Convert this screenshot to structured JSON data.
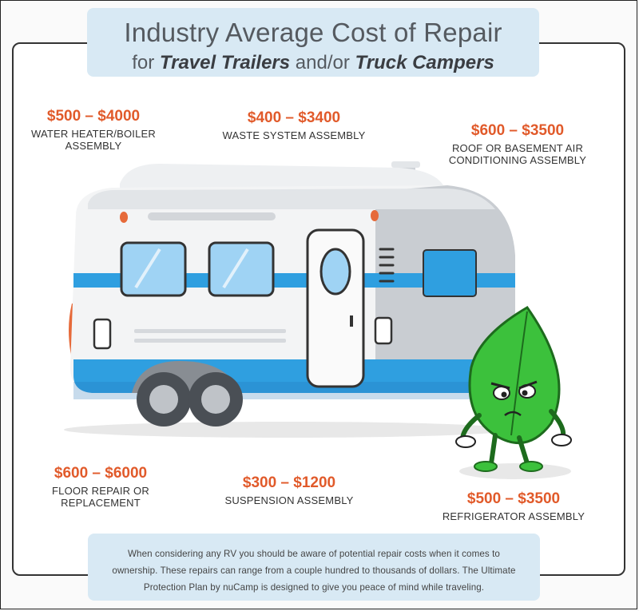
{
  "title": {
    "line1": "Industry Average Cost of Repair",
    "line2_prefix": "for ",
    "line2_bold1": "Travel Trailers",
    "line2_mid": " and/or ",
    "line2_bold2": "Truck Campers"
  },
  "costs": [
    {
      "price": "$500 – $4000",
      "desc1": "WATER HEATER/BOILER",
      "desc2": "ASSEMBLY"
    },
    {
      "price": "$400 – $3400",
      "desc1": "WASTE SYSTEM ASSEMBLY",
      "desc2": ""
    },
    {
      "price": "$600 – $3500",
      "desc1": "ROOF OR BASEMENT AIR",
      "desc2": "CONDITIONING ASSEMBLY"
    },
    {
      "price": "$600 – $6000",
      "desc1": "FLOOR REPAIR OR",
      "desc2": "REPLACEMENT"
    },
    {
      "price": "$300 – $1200",
      "desc1": "SUSPENSION ASSEMBLY",
      "desc2": ""
    },
    {
      "price": "$500 – $3500",
      "desc1": "REFRIGERATOR ASSEMBLY",
      "desc2": ""
    }
  ],
  "info_text": "When considering any RV you should be aware of potential repair costs when it comes to ownership. These repairs can range from a couple hundred to thousands of dollars. The Ultimate Protection Plan by nuCamp is designed to give you peace of mind while traveling.",
  "colors": {
    "accent_orange": "#e15a2a",
    "light_blue_panel": "#d8e9f4",
    "stripe_blue": "#2f9fe0",
    "mascot_green": "#3cc13c"
  },
  "icons": [
    "travel-trailer-illustration",
    "leaf-mascot-illustration"
  ]
}
